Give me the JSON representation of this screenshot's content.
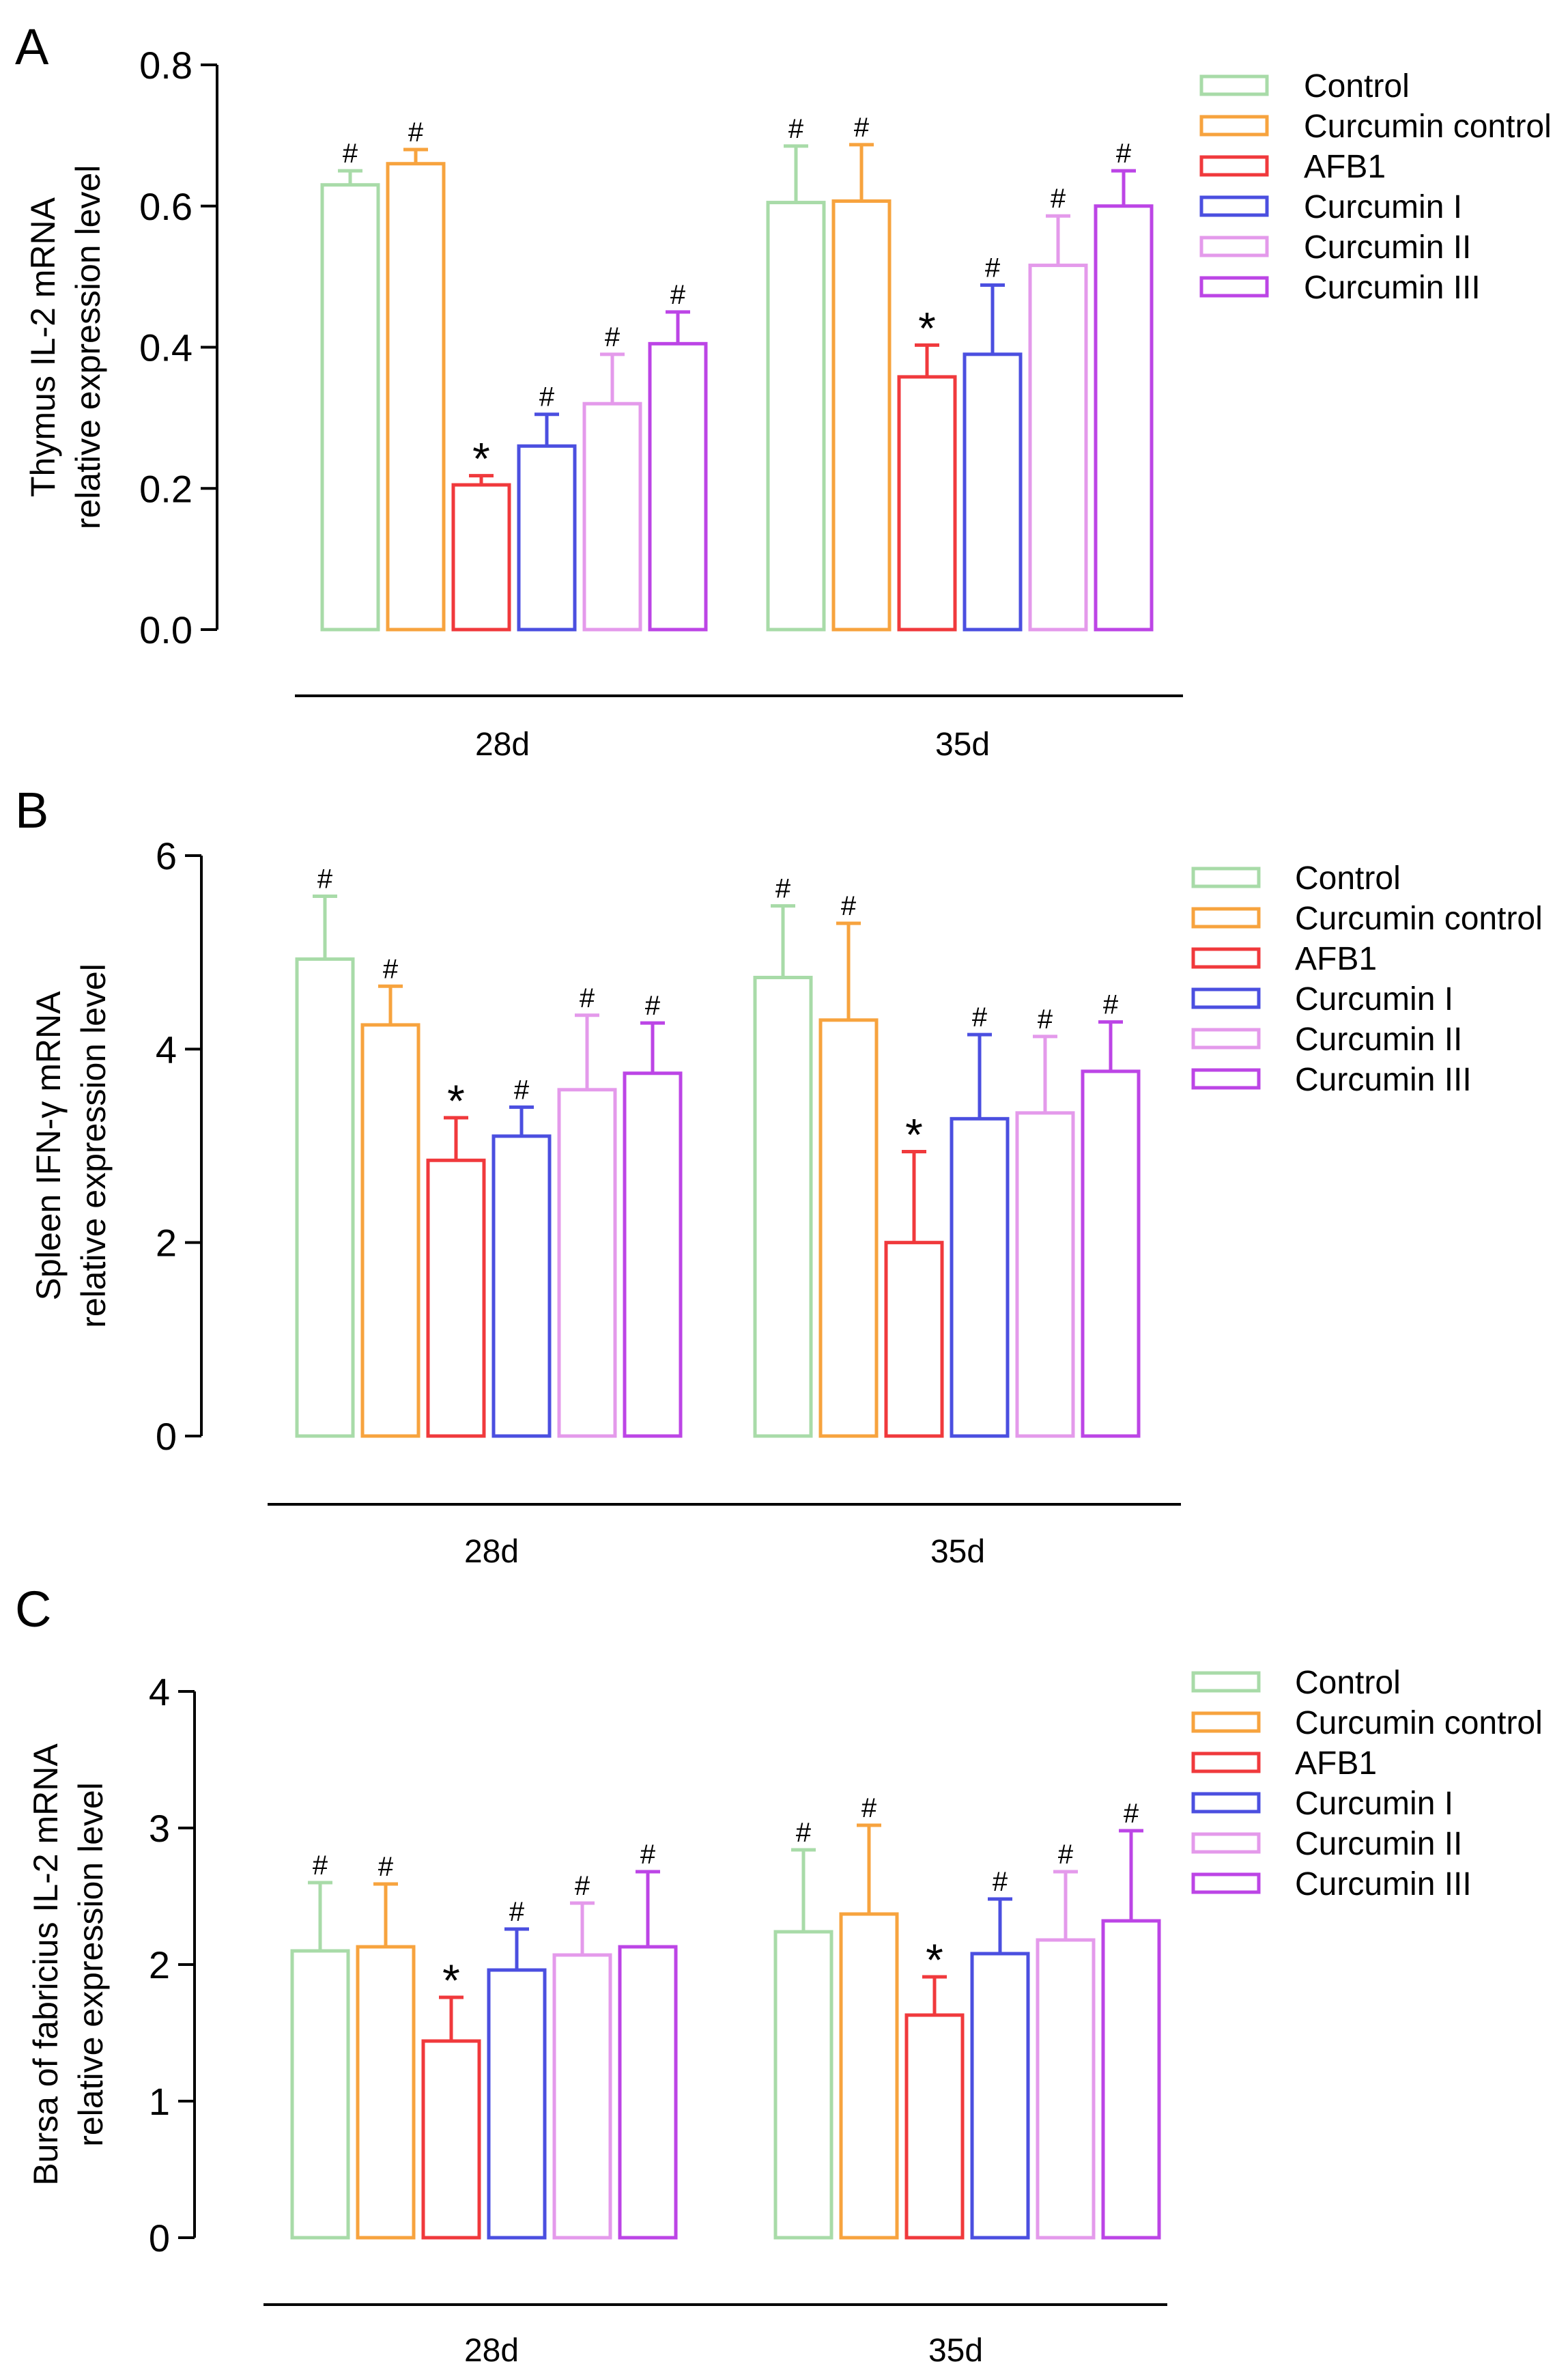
{
  "legend": {
    "items": [
      {
        "label": "Control",
        "color": "#A8DBA8"
      },
      {
        "label": "Curcumin control",
        "color": "#F7A33E"
      },
      {
        "label": "AFB1",
        "color": "#F0393C"
      },
      {
        "label": "Curcumin I",
        "color": "#4B4FE0"
      },
      {
        "label": "Curcumin II",
        "color": "#E49AEB"
      },
      {
        "label": "Curcumin III",
        "color": "#BC45E6"
      }
    ]
  },
  "chart_data": [
    {
      "type": "bar",
      "panel": "A",
      "ylabel_lines": [
        "Thymus IL-2 mRNA",
        "relative expression level"
      ],
      "ylim": [
        0,
        0.8
      ],
      "yticks": [
        "0.0",
        "0.2",
        "0.4",
        "0.6",
        "0.8"
      ],
      "categories": [
        "28d",
        "35d"
      ],
      "series": [
        {
          "name": "Control",
          "values": [
            0.63,
            0.605
          ],
          "errors": [
            0.02,
            0.08
          ],
          "marks": [
            "#",
            "#"
          ]
        },
        {
          "name": "Curcumin control",
          "values": [
            0.66,
            0.607
          ],
          "errors": [
            0.02,
            0.08
          ],
          "marks": [
            "#",
            "#"
          ]
        },
        {
          "name": "AFB1",
          "values": [
            0.205,
            0.358
          ],
          "errors": [
            0.013,
            0.045
          ],
          "marks": [
            "*",
            "*"
          ]
        },
        {
          "name": "Curcumin I",
          "values": [
            0.26,
            0.39
          ],
          "errors": [
            0.045,
            0.098
          ],
          "marks": [
            "#",
            "#"
          ]
        },
        {
          "name": "Curcumin II",
          "values": [
            0.32,
            0.516
          ],
          "errors": [
            0.07,
            0.07
          ],
          "marks": [
            "#",
            "#"
          ]
        },
        {
          "name": "Curcumin III",
          "values": [
            0.405,
            0.6
          ],
          "errors": [
            0.045,
            0.05
          ],
          "marks": [
            "#",
            "#"
          ]
        }
      ]
    },
    {
      "type": "bar",
      "panel": "B",
      "ylabel_lines": [
        "Spleen IFN-γ mRNA",
        "relative expression level"
      ],
      "ylim": [
        0,
        6
      ],
      "yticks": [
        "0",
        "2",
        "4",
        "6"
      ],
      "categories": [
        "28d",
        "35d"
      ],
      "series": [
        {
          "name": "Control",
          "values": [
            4.93,
            4.74
          ],
          "errors": [
            0.65,
            0.74
          ],
          "marks": [
            "#",
            "#"
          ]
        },
        {
          "name": "Curcumin control",
          "values": [
            4.25,
            4.3
          ],
          "errors": [
            0.4,
            1.0
          ],
          "marks": [
            "#",
            "#"
          ]
        },
        {
          "name": "AFB1",
          "values": [
            2.85,
            2.0
          ],
          "errors": [
            0.44,
            0.94
          ],
          "marks": [
            "*",
            "*"
          ]
        },
        {
          "name": "Curcumin I",
          "values": [
            3.1,
            3.28
          ],
          "errors": [
            0.3,
            0.87
          ],
          "marks": [
            "#",
            "#"
          ]
        },
        {
          "name": "Curcumin II",
          "values": [
            3.58,
            3.34
          ],
          "errors": [
            0.77,
            0.79
          ],
          "marks": [
            "#",
            "#"
          ]
        },
        {
          "name": "Curcumin III",
          "values": [
            3.75,
            3.77
          ],
          "errors": [
            0.52,
            0.51
          ],
          "marks": [
            "#",
            "#"
          ]
        }
      ]
    },
    {
      "type": "bar",
      "panel": "C",
      "ylabel_lines": [
        "Bursa of fabricius IL-2 mRNA",
        "relative expression level"
      ],
      "ylim": [
        0,
        4
      ],
      "yticks": [
        "0",
        "1",
        "2",
        "3",
        "4"
      ],
      "categories": [
        "28d",
        "35d"
      ],
      "series": [
        {
          "name": "Control",
          "values": [
            2.1,
            2.24
          ],
          "errors": [
            0.5,
            0.6
          ],
          "marks": [
            "#",
            "#"
          ]
        },
        {
          "name": "Curcumin control",
          "values": [
            2.13,
            2.37
          ],
          "errors": [
            0.46,
            0.65
          ],
          "marks": [
            "#",
            "#"
          ]
        },
        {
          "name": "AFB1",
          "values": [
            1.44,
            1.63
          ],
          "errors": [
            0.32,
            0.28
          ],
          "marks": [
            "*",
            "*"
          ]
        },
        {
          "name": "Curcumin I",
          "values": [
            1.96,
            2.08
          ],
          "errors": [
            0.3,
            0.4
          ],
          "marks": [
            "#",
            "#"
          ]
        },
        {
          "name": "Curcumin II",
          "values": [
            2.07,
            2.18
          ],
          "errors": [
            0.38,
            0.5
          ],
          "marks": [
            "#",
            "#"
          ]
        },
        {
          "name": "Curcumin III",
          "values": [
            2.13,
            2.32
          ],
          "errors": [
            0.55,
            0.66
          ],
          "marks": [
            "#",
            "#"
          ]
        }
      ]
    }
  ]
}
